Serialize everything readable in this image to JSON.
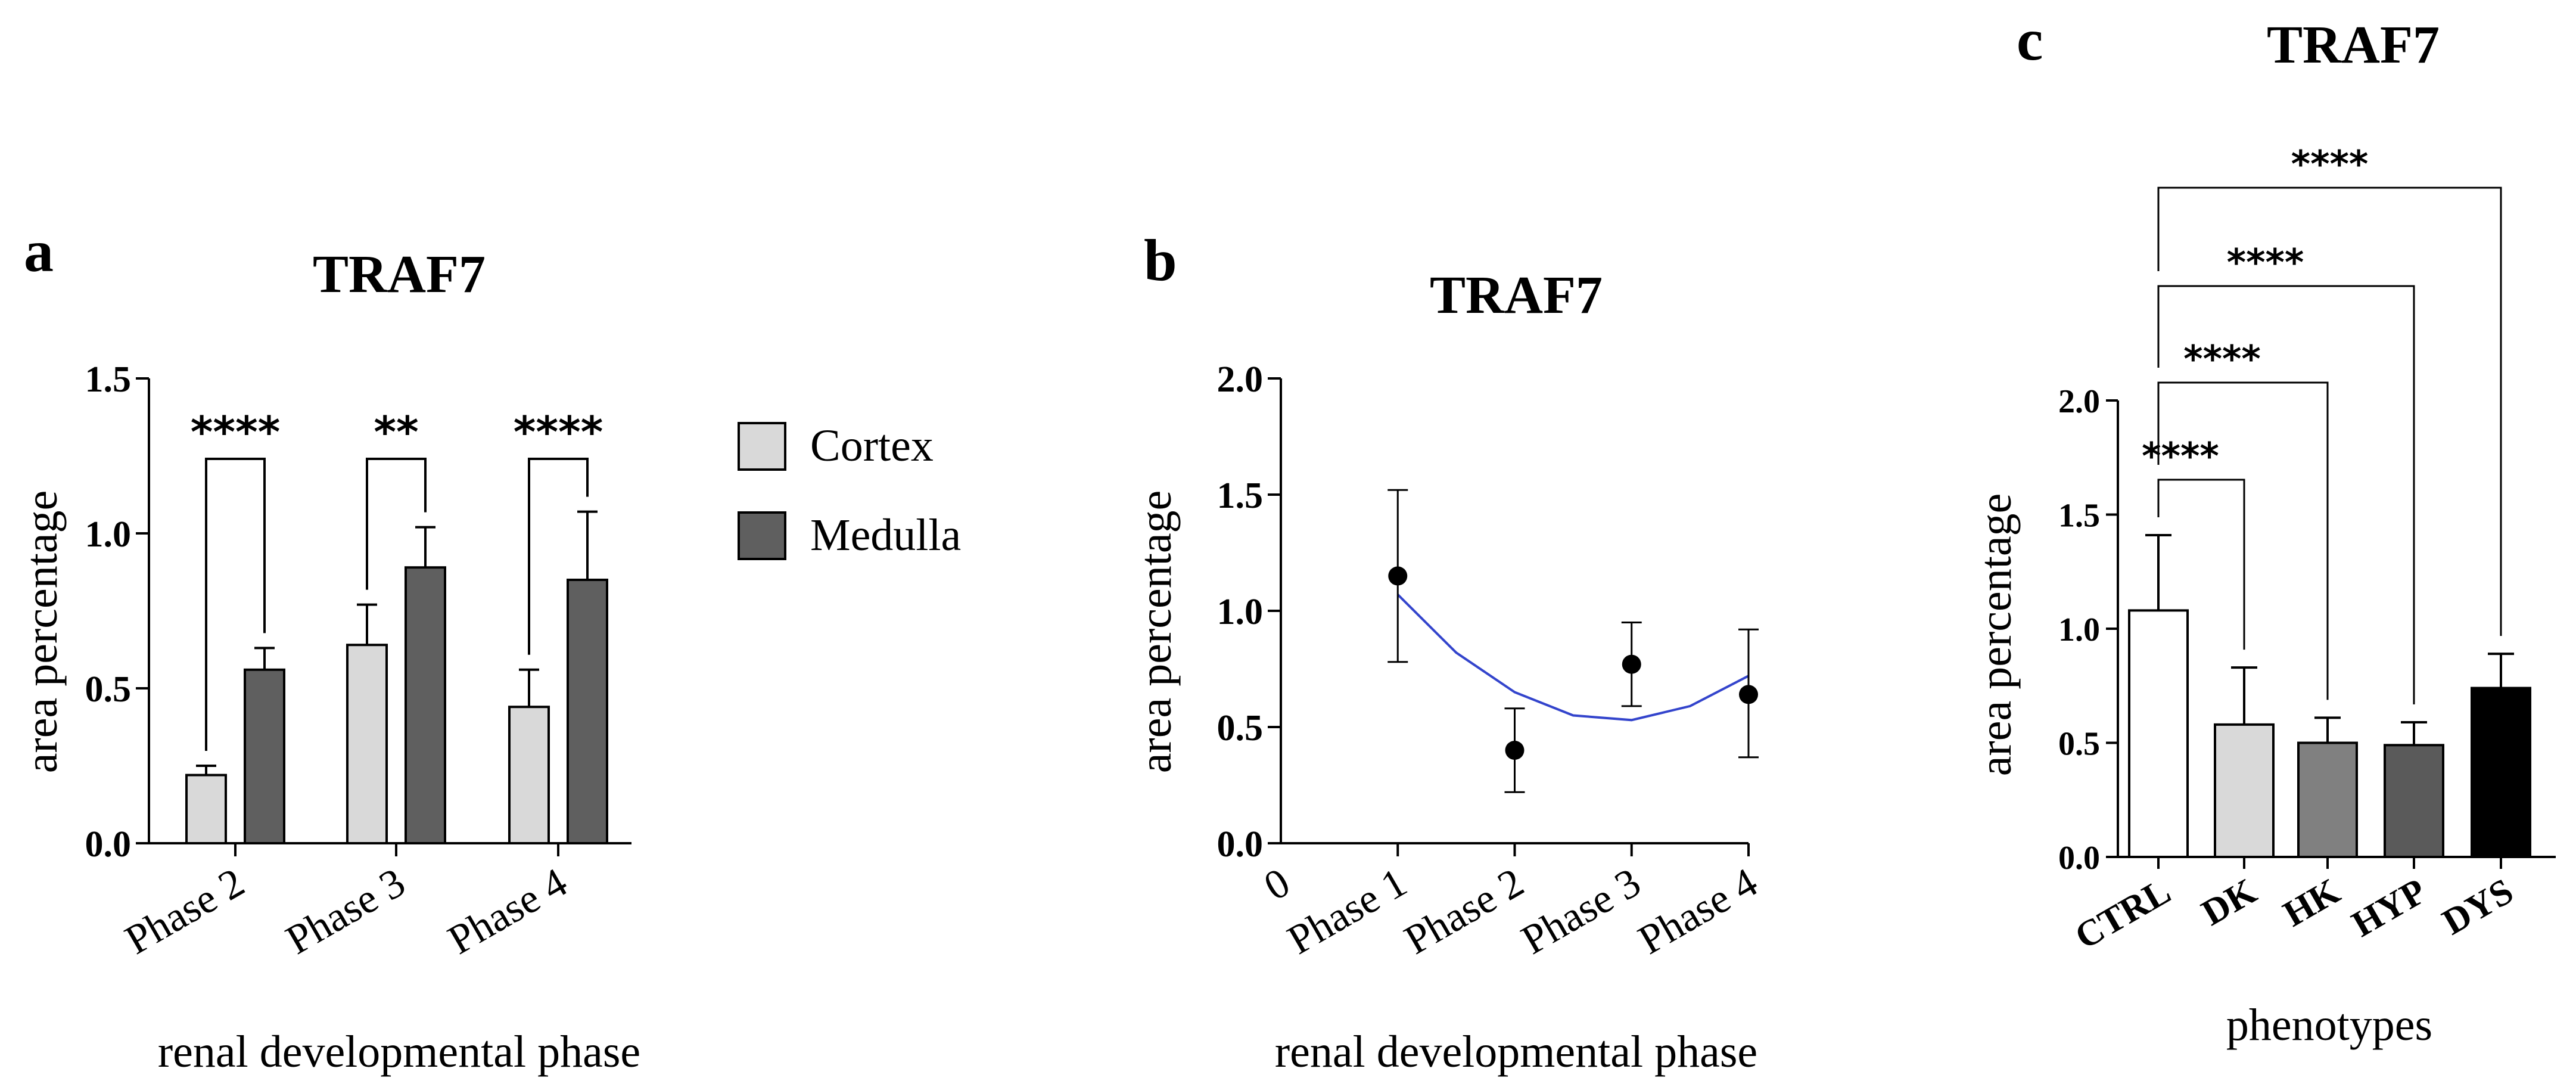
{
  "chart_data": [
    {
      "panel": "a",
      "type": "bar",
      "title": "TRAF7",
      "xlabel": "renal developmental phase",
      "ylabel": "area percentage",
      "ylim": [
        0,
        1.5
      ],
      "yticks": [
        "0.0",
        "0.5",
        "1.0",
        "1.5"
      ],
      "categories": [
        "Phase 2",
        "Phase 3",
        "Phase 4"
      ],
      "series": [
        {
          "name": "Cortex",
          "color": "#d9d9d9",
          "values": [
            0.22,
            0.64,
            0.44
          ],
          "errors": [
            0.03,
            0.13,
            0.12
          ]
        },
        {
          "name": "Medulla",
          "color": "#5f5f5f",
          "values": [
            0.56,
            0.89,
            0.85
          ],
          "errors": [
            0.07,
            0.13,
            0.22
          ]
        }
      ],
      "significance": [
        "****",
        "**",
        "****"
      ],
      "legend_position": "right"
    },
    {
      "panel": "b",
      "type": "scatter",
      "title": "TRAF7",
      "xlabel": "renal developmental phase",
      "ylabel": "area percentage",
      "ylim": [
        0,
        2.0
      ],
      "yticks": [
        "0.0",
        "0.5",
        "1.0",
        "1.5",
        "2.0"
      ],
      "categories": [
        "0",
        "Phase 1",
        "Phase 2",
        "Phase 3",
        "Phase 4"
      ],
      "points": [
        {
          "x": "Phase 1",
          "value": 1.15,
          "low": 0.78,
          "high": 1.52
        },
        {
          "x": "Phase 2",
          "value": 0.4,
          "low": 0.22,
          "high": 0.58
        },
        {
          "x": "Phase 3",
          "value": 0.77,
          "low": 0.59,
          "high": 0.95
        },
        {
          "x": "Phase 4",
          "value": 0.64,
          "low": 0.37,
          "high": 0.92
        }
      ],
      "fit": {
        "type": "quadratic",
        "color": "#3344cc",
        "x": [
          1,
          1.5,
          2,
          2.5,
          3,
          3.5,
          4
        ],
        "y": [
          1.07,
          0.82,
          0.65,
          0.55,
          0.53,
          0.59,
          0.72
        ]
      }
    },
    {
      "panel": "c",
      "type": "bar",
      "title": "TRAF7",
      "xlabel": "phenotypes",
      "ylabel": "area percentage",
      "ylim": [
        0,
        2.0
      ],
      "yticks": [
        "0.0",
        "0.5",
        "1.0",
        "1.5",
        "2.0"
      ],
      "categories": [
        "CTRL",
        "DK",
        "HK",
        "HYP",
        "DYS"
      ],
      "values": [
        1.08,
        0.58,
        0.5,
        0.49,
        0.74
      ],
      "errors": [
        0.33,
        0.25,
        0.11,
        0.1,
        0.15
      ],
      "colors": [
        "#ffffff",
        "#d9d9d9",
        "#808080",
        "#5a5a5a",
        "#000000"
      ],
      "significance": [
        {
          "from": "CTRL",
          "to": "DK",
          "label": "****"
        },
        {
          "from": "CTRL",
          "to": "HK",
          "label": "****"
        },
        {
          "from": "CTRL",
          "to": "HYP",
          "label": "****"
        },
        {
          "from": "CTRL",
          "to": "DYS",
          "label": "****"
        }
      ]
    }
  ]
}
